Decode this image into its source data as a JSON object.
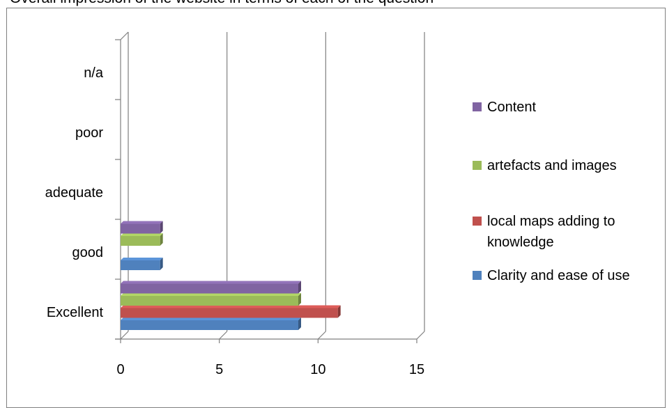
{
  "top_caption": "Overall impression of the website in terms of each of the question",
  "chart_data": {
    "type": "bar",
    "orientation": "horizontal",
    "style": "3d-clustered",
    "categories": [
      "Excellent",
      "good",
      "adequate",
      "poor",
      "n/a"
    ],
    "series": [
      {
        "name": "Clarity and ease of use",
        "color": "#4f81bd",
        "values": [
          9,
          2,
          0,
          0,
          0
        ]
      },
      {
        "name": "local maps adding to knowledge",
        "color": "#c0504d",
        "values": [
          11,
          0,
          0,
          0,
          0
        ]
      },
      {
        "name": "artefacts and images",
        "color": "#9bbb59",
        "values": [
          9,
          2,
          0,
          0,
          0
        ]
      },
      {
        "name": "Content",
        "color": "#8064a2",
        "values": [
          9,
          2,
          0,
          0,
          0
        ]
      }
    ],
    "xlim": [
      0,
      15
    ],
    "x_ticks": [
      "0",
      "5",
      "10",
      "15"
    ],
    "legend_order": [
      "Content",
      "artefacts and images",
      "local maps adding to knowledge",
      "Clarity and ease of use"
    ],
    "legend_lines": {
      "local maps adding to knowledge": [
        "local maps adding to",
        "knowledge"
      ]
    },
    "gridlines": true,
    "legend_position": "right",
    "xlabel": "",
    "ylabel": "",
    "title": ""
  }
}
